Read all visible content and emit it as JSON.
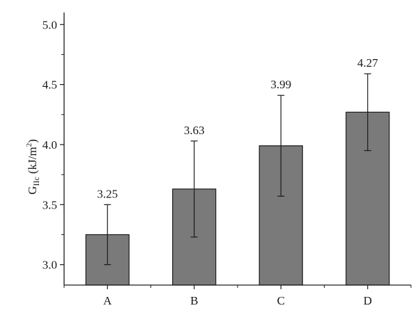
{
  "chart_data": {
    "type": "bar",
    "categories": [
      "A",
      "B",
      "C",
      "D"
    ],
    "values": [
      3.25,
      3.63,
      3.99,
      4.27
    ],
    "error_low": [
      3.0,
      3.23,
      3.57,
      3.95
    ],
    "error_high": [
      3.5,
      4.03,
      4.41,
      4.59
    ],
    "data_labels": [
      "3.25",
      "3.63",
      "3.99",
      "4.27"
    ],
    "ylim": [
      2.83,
      5.1
    ],
    "yticks": [
      3.0,
      3.5,
      4.0,
      4.5,
      5.0
    ],
    "ytick_labels": [
      "3.0",
      "3.5",
      "4.0",
      "4.5",
      "5.0"
    ],
    "ylabel": {
      "main": "G",
      "subscript": "IIc",
      "unit": " (kJ/m",
      "superscript": "2",
      "close": ")"
    },
    "xlabel": "",
    "title": "",
    "grid": false,
    "bar_color": "#7a7a7a",
    "bar_edge_color": "#1a1a1a",
    "axis_color": "#1a1a1a"
  }
}
